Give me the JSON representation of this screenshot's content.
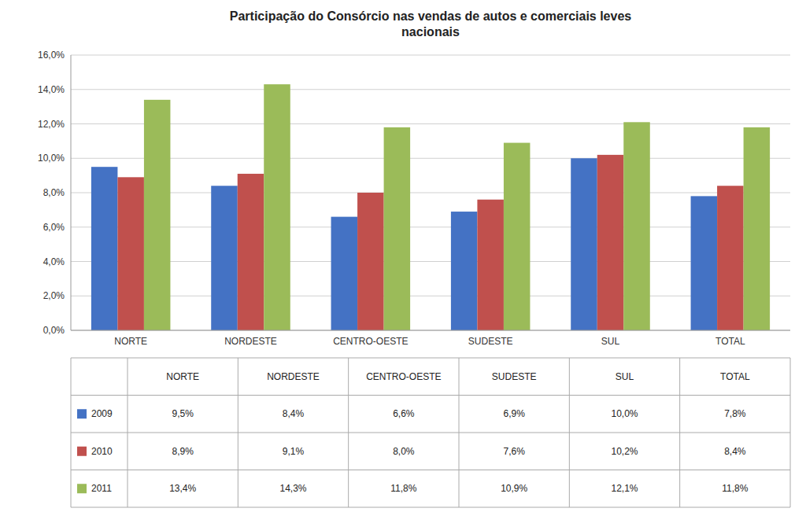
{
  "chart_data": {
    "type": "bar",
    "title": "Participação do Consórcio nas vendas de autos e comerciais leves\nnacionais",
    "categories": [
      "NORTE",
      "NORDESTE",
      "CENTRO-OESTE",
      "SUDESTE",
      "SUL",
      "TOTAL"
    ],
    "series": [
      {
        "name": "2009",
        "color": "#4472C4",
        "values": [
          0.095,
          0.084,
          0.066,
          0.069,
          0.1,
          0.078
        ],
        "value_labels": [
          "9,5%",
          "8,4%",
          "6,6%",
          "6,9%",
          "10,0%",
          "7,8%"
        ]
      },
      {
        "name": "2010",
        "color": "#C0504D",
        "values": [
          0.089,
          0.091,
          0.08,
          0.076,
          0.102,
          0.084
        ],
        "value_labels": [
          "8,9%",
          "9,1%",
          "8,0%",
          "7,6%",
          "10,2%",
          "8,4%"
        ]
      },
      {
        "name": "2011",
        "color": "#9BBB59",
        "values": [
          0.134,
          0.143,
          0.118,
          0.109,
          0.121,
          0.118
        ],
        "value_labels": [
          "13,4%",
          "14,3%",
          "11,8%",
          "10,9%",
          "12,1%",
          "11,8%"
        ]
      }
    ],
    "ylim": [
      0,
      0.16
    ],
    "yticks": [
      {
        "value": 0.0,
        "label": "0,0%"
      },
      {
        "value": 0.02,
        "label": "2,0%"
      },
      {
        "value": 0.04,
        "label": "4,0%"
      },
      {
        "value": 0.06,
        "label": "6,0%"
      },
      {
        "value": 0.08,
        "label": "8,0%"
      },
      {
        "value": 0.1,
        "label": "10,0%"
      },
      {
        "value": 0.12,
        "label": "12,0%"
      },
      {
        "value": 0.14,
        "label": "14,0%"
      },
      {
        "value": 0.16,
        "label": "16,0%"
      }
    ],
    "grid": true,
    "legend": "bottom"
  }
}
